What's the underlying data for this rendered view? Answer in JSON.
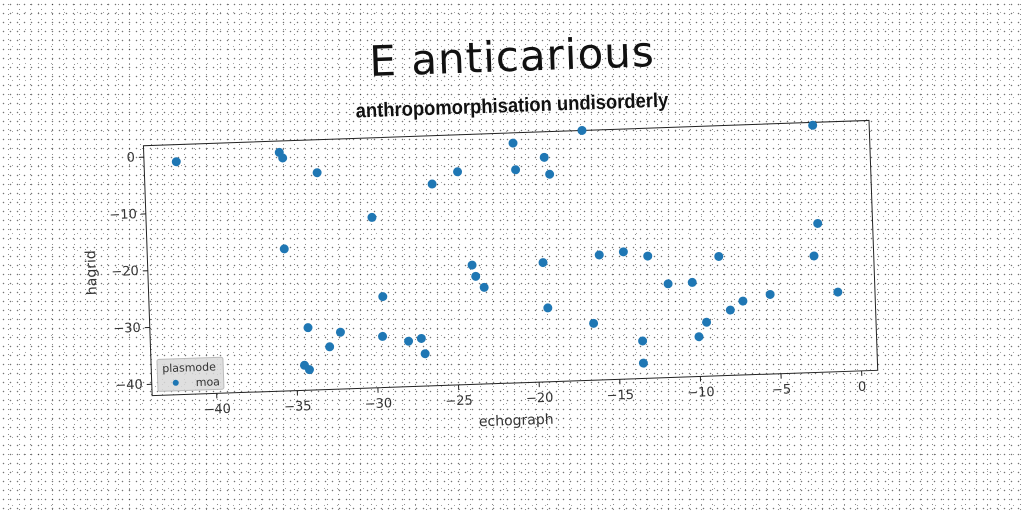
{
  "chart_data": {
    "type": "scatter",
    "title": "E anticarious",
    "subtitle": "anthropomorphisation undisorderly",
    "xlabel": "echograph",
    "ylabel": "hagrid",
    "xlim": [
      -44,
      1
    ],
    "ylim": [
      -42,
      2
    ],
    "xticks": [
      -40,
      -35,
      -30,
      -25,
      -20,
      -15,
      -10,
      -5,
      0
    ],
    "yticks": [
      0,
      -10,
      -20,
      -30,
      -40
    ],
    "grid": false,
    "legend": {
      "title": "plasmode",
      "placement": "lower-left",
      "entries": [
        "moa"
      ]
    },
    "series": [
      {
        "name": "moa",
        "color": "#1f77b4",
        "points": [
          [
            -42.0,
            -1.0
          ],
          [
            -35.6,
            0.0
          ],
          [
            -35.4,
            -1.0
          ],
          [
            -33.3,
            -3.8
          ],
          [
            -35.5,
            -17.0
          ],
          [
            -30.0,
            -12.0
          ],
          [
            -29.5,
            -26.0
          ],
          [
            -29.6,
            -33.0
          ],
          [
            -34.2,
            -31.0
          ],
          [
            -32.2,
            -32.0
          ],
          [
            -32.9,
            -34.5
          ],
          [
            -34.5,
            -37.6
          ],
          [
            -34.2,
            -38.4
          ],
          [
            -28.0,
            -34.0
          ],
          [
            -27.2,
            -33.6
          ],
          [
            -27.0,
            -36.3
          ],
          [
            -26.2,
            -6.5
          ],
          [
            -24.6,
            -4.5
          ],
          [
            -23.9,
            -21.0
          ],
          [
            -23.7,
            -23.0
          ],
          [
            -23.2,
            -25.0
          ],
          [
            -21.1,
            0.2
          ],
          [
            -21.0,
            -4.5
          ],
          [
            -19.2,
            -2.5
          ],
          [
            -18.9,
            -5.5
          ],
          [
            -19.5,
            -21.0
          ],
          [
            -19.3,
            -29.0
          ],
          [
            -16.8,
            2.0
          ],
          [
            -16.5,
            -32.0
          ],
          [
            -16.0,
            -20.0
          ],
          [
            -14.5,
            -19.6
          ],
          [
            -13.5,
            -35.4
          ],
          [
            -13.5,
            -39.3
          ],
          [
            -13.0,
            -20.5
          ],
          [
            -11.8,
            -25.5
          ],
          [
            -10.3,
            -25.4
          ],
          [
            -10.0,
            -35.0
          ],
          [
            -9.5,
            -32.5
          ],
          [
            -8.6,
            -21.0
          ],
          [
            -8.0,
            -30.5
          ],
          [
            -7.2,
            -29.0
          ],
          [
            -5.5,
            -28.0
          ],
          [
            -2.7,
            -21.5
          ],
          [
            -2.4,
            -15.8
          ],
          [
            -2.5,
            1.5
          ],
          [
            -1.3,
            -28.0
          ]
        ]
      }
    ]
  }
}
